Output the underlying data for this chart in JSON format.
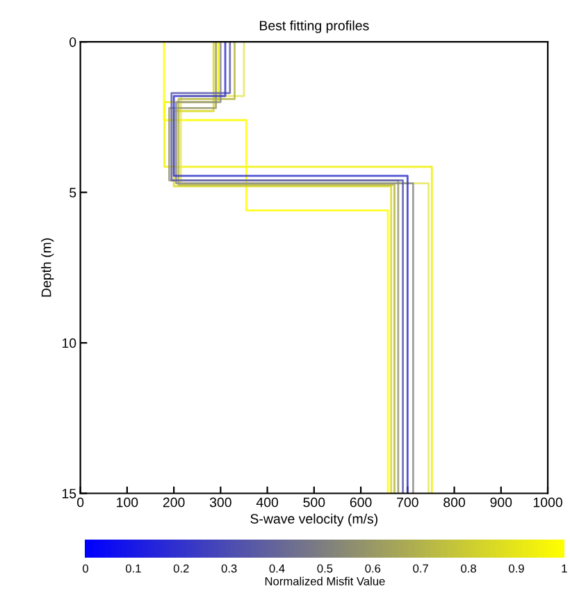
{
  "chart_data": {
    "type": "line",
    "title": "Best fitting profiles",
    "xlabel": "S-wave velocity (m/s)",
    "ylabel": "Depth (m)",
    "clabel": "Normalized Misfit Value",
    "xlim": [
      0,
      1000
    ],
    "xticks": [
      0,
      100,
      200,
      300,
      400,
      500,
      600,
      700,
      800,
      900,
      1000
    ],
    "ylim": [
      15,
      0
    ],
    "yticks": [
      0,
      5,
      10,
      15
    ],
    "clim": [
      0,
      1
    ],
    "cticks": [
      0,
      0.1,
      0.2,
      0.3,
      0.4,
      0.5,
      0.6,
      0.7,
      0.8,
      0.9,
      1
    ],
    "colors": [
      "#0000ff",
      "#808080",
      "#ffff00"
    ],
    "grid": false,
    "marker": "none",
    "line_style": "solid",
    "series": [
      {
        "color": "#f0f000",
        "x": [
          295,
          295,
          180,
          180,
          752,
          752
        ],
        "values": [
          0,
          2.0,
          2.0,
          4.15,
          4.15,
          15
        ]
      },
      {
        "color": "#ffff00",
        "x": [
          179,
          179,
          355,
          355,
          658,
          658
        ],
        "values": [
          0,
          2.6,
          2.6,
          5.6,
          5.6,
          15
        ]
      },
      {
        "color": "#e8e860",
        "x": [
          350,
          350,
          215,
          215,
          745,
          745
        ],
        "values": [
          0,
          1.8,
          1.8,
          4.7,
          4.7,
          15
        ]
      },
      {
        "color": "#d8d820",
        "x": [
          285,
          285,
          200,
          200,
          665,
          665
        ],
        "values": [
          0,
          2.3,
          2.3,
          4.8,
          4.8,
          15
        ]
      },
      {
        "color": "#b5b540",
        "x": [
          330,
          330,
          210,
          210,
          672,
          672
        ],
        "values": [
          0,
          1.9,
          1.9,
          4.75,
          4.75,
          15
        ]
      },
      {
        "color": "#9a9a70",
        "x": [
          290,
          290,
          190,
          190,
          680,
          680
        ],
        "values": [
          0,
          2.2,
          2.2,
          4.6,
          4.6,
          15
        ]
      },
      {
        "color": "#8c8c8c",
        "x": [
          300,
          300,
          205,
          205,
          712,
          712
        ],
        "values": [
          0,
          2.0,
          2.0,
          4.7,
          4.7,
          15
        ]
      },
      {
        "color": "#5a5ab0",
        "x": [
          320,
          320,
          195,
          195,
          690,
          690
        ],
        "values": [
          0,
          1.7,
          1.7,
          4.6,
          4.6,
          15
        ]
      },
      {
        "color": "#3333cc",
        "x": [
          310,
          310,
          200,
          200,
          700,
          700
        ],
        "values": [
          0,
          1.8,
          1.8,
          4.45,
          4.45,
          15
        ]
      }
    ]
  }
}
